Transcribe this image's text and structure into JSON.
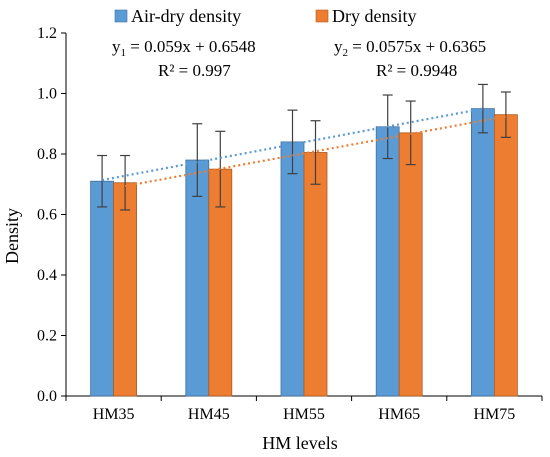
{
  "chart_data": {
    "type": "bar",
    "xlabel": "HM levels",
    "ylabel": "Density",
    "ylim": [
      0.0,
      1.2
    ],
    "yticks": [
      "0.0",
      "0.2",
      "0.4",
      "0.6",
      "0.8",
      "1.0",
      "1.2"
    ],
    "categories": [
      "HM35",
      "HM45",
      "HM55",
      "HM65",
      "HM75"
    ],
    "legend_position": "top",
    "grid": false,
    "series": [
      {
        "name": "Air-dry density",
        "color": "#5B9BD5",
        "values": [
          0.71,
          0.78,
          0.84,
          0.89,
          0.95
        ],
        "error": [
          0.085,
          0.12,
          0.105,
          0.105,
          0.08
        ]
      },
      {
        "name": "Dry density",
        "color": "#ED7D31",
        "values": [
          0.705,
          0.75,
          0.805,
          0.87,
          0.93
        ],
        "error": [
          0.09,
          0.125,
          0.105,
          0.105,
          0.075
        ]
      }
    ],
    "trendlines": [
      {
        "series": "Air-dry density",
        "style": "dotted",
        "color": "#5B9BD5",
        "eq_var": "y",
        "eq_sub": "1",
        "eq_rhs": " = 0.059x + 0.6548",
        "r2": "R² = 0.997",
        "slope": 0.059,
        "intercept": 0.6548
      },
      {
        "series": "Dry density",
        "style": "dotted",
        "color": "#ED7D31",
        "eq_var": "y",
        "eq_sub": "2",
        "eq_rhs": " = 0.0575x + 0.6365",
        "r2": "R² = 0.9948",
        "slope": 0.0575,
        "intercept": 0.6365
      }
    ]
  }
}
